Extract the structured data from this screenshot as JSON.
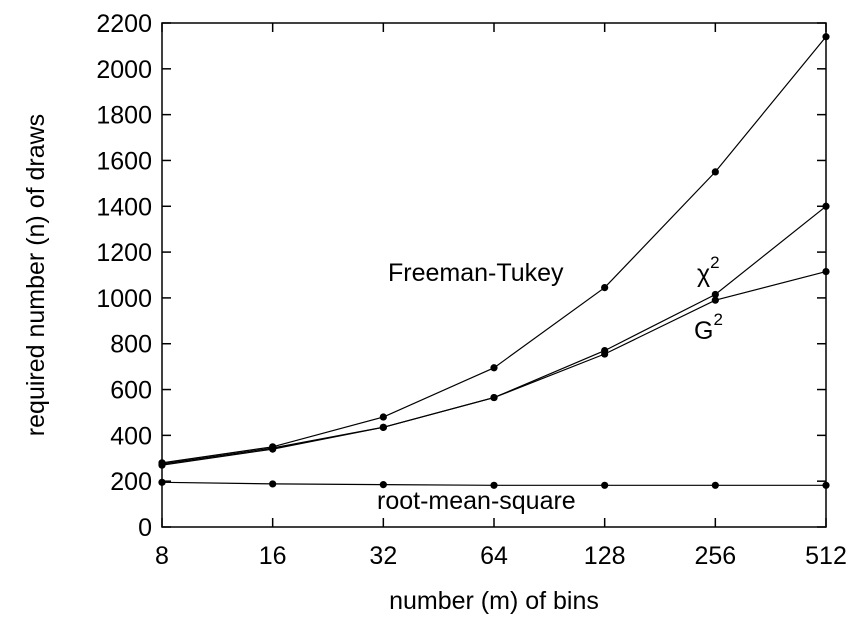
{
  "chart_data": {
    "type": "line",
    "xlabel": "number (m) of bins",
    "ylabel": "required number (n) of draws",
    "x_scale": "log2",
    "x": [
      8,
      16,
      32,
      64,
      128,
      256,
      512
    ],
    "x_tick_labels": [
      "8",
      "16",
      "32",
      "64",
      "128",
      "256",
      "512"
    ],
    "ylim": [
      0,
      2200
    ],
    "y_ticks": [
      0,
      200,
      400,
      600,
      800,
      1000,
      1200,
      1400,
      1600,
      1800,
      2000,
      2200
    ],
    "y_tick_labels": [
      "0",
      "200",
      "400",
      "600",
      "800",
      "1000",
      "1200",
      "1400",
      "1600",
      "1800",
      "2000",
      "2200"
    ],
    "grid": false,
    "series": [
      {
        "name": "Freeman-Tukey",
        "values": [
          280,
          350,
          480,
          695,
          1045,
          1550,
          2140
        ]
      },
      {
        "name": "χ2",
        "label_base": "χ",
        "label_sup": "2",
        "values": [
          275,
          345,
          435,
          565,
          770,
          1015,
          1400
        ]
      },
      {
        "name": "G2",
        "label_base": "G",
        "label_sup": "2",
        "values": [
          270,
          340,
          435,
          565,
          755,
          990,
          1115
        ]
      },
      {
        "name": "root-mean-square",
        "values": [
          195,
          188,
          185,
          182,
          182,
          182,
          182
        ]
      }
    ]
  }
}
